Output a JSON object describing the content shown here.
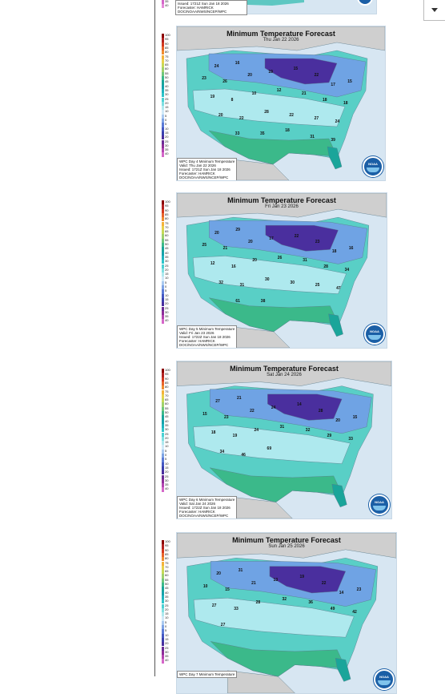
{
  "legend_labels": [
    "100",
    "95",
    "90",
    "85",
    "80",
    "75",
    "70",
    "65",
    "60",
    "55",
    "50",
    "45",
    "40",
    "35",
    "30",
    "25",
    "20",
    "15",
    "10",
    "5",
    "0",
    "5",
    "10",
    "15",
    "20",
    "25",
    "30",
    "35",
    "40"
  ],
  "legend_colors": [
    "#8b0000",
    "#b22222",
    "#d2381f",
    "#e8632a",
    "#f08c2e",
    "#f4b23a",
    "#e8d04a",
    "#c6d956",
    "#9fd16b",
    "#6fc77b",
    "#3bb98a",
    "#1aa59a",
    "#17a2ab",
    "#1fb3bd",
    "#2cc4c9",
    "#4bd1d3",
    "#7ddfe1",
    "#aee9ee",
    "#cfe9f8",
    "#a9c9f0",
    "#7ea3e4",
    "#5b7ad6",
    "#4457c2",
    "#3a3fae",
    "#4a2f9e",
    "#6b2d96",
    "#8e2e99",
    "#b344b0",
    "#d466c8"
  ],
  "top_fragment": {
    "lines": [
      "Issued: 1721Z Sun Jan 18 2026",
      "Forecaster: HAMRICK",
      "DOC/NOAA/NWS/NCEP/WPC"
    ],
    "legend_tail": [
      "35",
      "40"
    ]
  },
  "panels": [
    {
      "title": "Minimum Temperature Forecast",
      "date": "Thu Jan 22 2026",
      "info": [
        "WPC Day 4 Minimum Temperature",
        "Valid: Thu Jan 22 2026",
        "Issued: 1721Z Sun Jan 18 2026",
        "Forecaster: HAMRICK",
        "DOC/NOAA/NWS/NCEP/WPC"
      ],
      "numbers": [
        "24",
        "16",
        "23",
        "26",
        "20",
        "19",
        "15",
        "22",
        "17",
        "15",
        "19",
        "8",
        "10",
        "12",
        "21",
        "18",
        "18",
        "20",
        "22",
        "28",
        "22",
        "27",
        "24",
        "33",
        "35",
        "18",
        "31",
        "39"
      ]
    },
    {
      "title": "Minimum Temperature Forecast",
      "date": "Fri Jan 23 2026",
      "info": [
        "WPC Day 5 Minimum Temperature",
        "Valid: Fri Jan 23 2026",
        "Issued: 1722Z Sun Jan 18 2026",
        "Forecaster: HAMRICK",
        "DOC/NOAA/NWS/NCEP/WPC"
      ],
      "numbers": [
        "20",
        "29",
        "25",
        "21",
        "20",
        "17",
        "22",
        "23",
        "18",
        "16",
        "12",
        "16",
        "20",
        "26",
        "31",
        "28",
        "34",
        "32",
        "31",
        "30",
        "30",
        "25",
        "47",
        "61",
        "38"
      ]
    },
    {
      "title": "Minimum Temperature Forecast",
      "date": "Sat Jan 24 2026",
      "info": [
        "WPC Day 6 Minimum Temperature",
        "Valid: Sat Jan 24 2026",
        "Issued: 1722Z Sun Jan 18 2026",
        "Forecaster: HAMRICK",
        "DOC/NOAA/NWS/NCEP/WPC"
      ],
      "numbers": [
        "27",
        "21",
        "15",
        "23",
        "22",
        "24",
        "14",
        "28",
        "20",
        "15",
        "18",
        "19",
        "24",
        "31",
        "32",
        "29",
        "33",
        "34",
        "46",
        "69"
      ]
    },
    {
      "title": "Minimum Temperature Forecast",
      "date": "Sun Jan 25 2026",
      "info": [
        "WPC Day 7 Minimum Temperature"
      ],
      "numbers": [
        "20",
        "31",
        "10",
        "15",
        "21",
        "13",
        "19",
        "22",
        "14",
        "23",
        "27",
        "33",
        "28",
        "32",
        "36",
        "49",
        "42",
        "27"
      ]
    }
  ]
}
